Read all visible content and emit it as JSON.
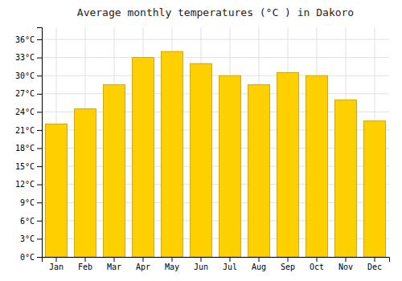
{
  "chart_data": {
    "type": "bar",
    "title": "Average monthly temperatures (°C ) in Dakoro",
    "categories": [
      "Jan",
      "Feb",
      "Mar",
      "Apr",
      "May",
      "Jun",
      "Jul",
      "Aug",
      "Sep",
      "Oct",
      "Nov",
      "Dec"
    ],
    "values": [
      22,
      24.5,
      28.5,
      33,
      34,
      32,
      30,
      28.5,
      30.5,
      30,
      26,
      22.5
    ],
    "color": "#FFD000",
    "ylim": [
      0,
      38
    ],
    "yticks": [
      {
        "value": 0,
        "label": "0°C"
      },
      {
        "value": 3,
        "label": "3°C"
      },
      {
        "value": 6,
        "label": "6°C"
      },
      {
        "value": 9,
        "label": "9°C"
      },
      {
        "value": 12,
        "label": "12°C"
      },
      {
        "value": 15,
        "label": "15°C"
      },
      {
        "value": 18,
        "label": "18°C"
      },
      {
        "value": 21,
        "label": "21°C"
      },
      {
        "value": 24,
        "label": "24°C"
      },
      {
        "value": 27,
        "label": "27°C"
      },
      {
        "value": 30,
        "label": "30°C"
      },
      {
        "value": 33,
        "label": "33°C"
      },
      {
        "value": 36,
        "label": "36°C"
      }
    ],
    "grid": true
  }
}
